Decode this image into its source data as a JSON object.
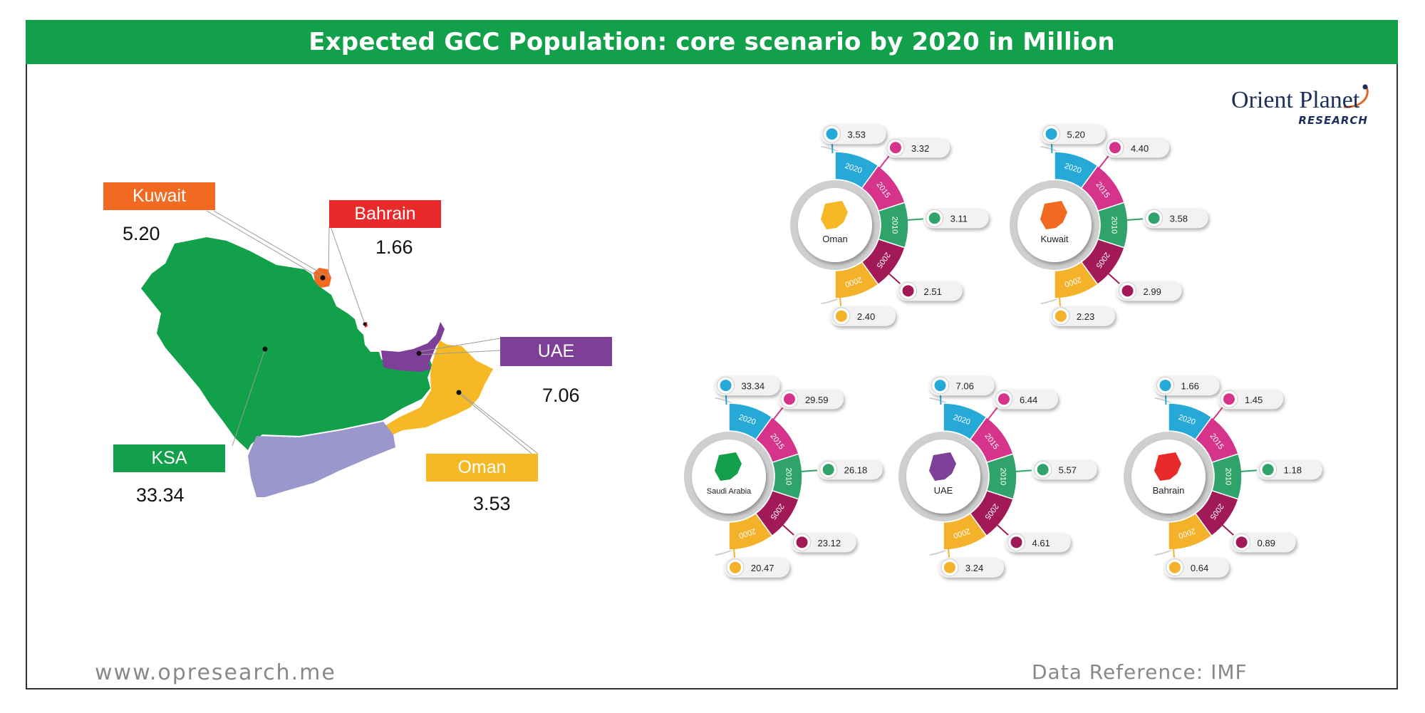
{
  "header": {
    "title": "Expected GCC Population: core scenario by 2020 in Million"
  },
  "logo": {
    "name": "Orient Planet",
    "subtitle": "RESEARCH"
  },
  "footer": {
    "url": "www.opresearch.me",
    "reference": "Data Reference: IMF"
  },
  "colors": {
    "title_bar": "#12a04a",
    "year_2020": "#27a9d8",
    "year_2015": "#d6348a",
    "year_2010": "#2fa36a",
    "year_2005": "#a11a57",
    "year_2000": "#f4b12a"
  },
  "map": {
    "labels": [
      {
        "name": "Kuwait",
        "value": "5.20",
        "color": "#f26a21"
      },
      {
        "name": "Bahrain",
        "value": "1.66",
        "color": "#e92a2a"
      },
      {
        "name": "UAE",
        "value": "7.06",
        "color": "#7d3f97"
      },
      {
        "name": "Oman",
        "value": "3.53",
        "color": "#f6b825"
      },
      {
        "name": "KSA",
        "value": "33.34",
        "color": "#12a04a"
      }
    ]
  },
  "chart_data": {
    "type": "radial_timeline",
    "title": "Expected GCC Population: core scenario by 2020 in Million",
    "years": [
      "2020",
      "2015",
      "2010",
      "2005",
      "2000"
    ],
    "series": [
      {
        "name": "Oman",
        "values": [
          3.53,
          3.32,
          3.11,
          2.51,
          2.4
        ]
      },
      {
        "name": "Kuwait",
        "values": [
          5.2,
          4.4,
          3.58,
          2.99,
          2.23
        ]
      },
      {
        "name": "Saudi Arabia",
        "values": [
          33.34,
          29.59,
          26.18,
          23.12,
          20.47
        ]
      },
      {
        "name": "UAE",
        "values": [
          7.06,
          6.44,
          5.57,
          4.61,
          3.24
        ]
      },
      {
        "name": "Bahrain",
        "values": [
          1.66,
          1.45,
          1.18,
          0.89,
          0.64
        ]
      }
    ],
    "value_labels": [
      [
        "3.53",
        "3.32",
        "3.11",
        "2.51",
        "2.40"
      ],
      [
        "5.20",
        "4.40",
        "3.58",
        "2.99",
        "2.23"
      ],
      [
        "33.34",
        "29.59",
        "26.18",
        "23.12",
        "20.47"
      ],
      [
        "7.06",
        "6.44",
        "5.57",
        "4.61",
        "3.24"
      ],
      [
        "1.66",
        "1.45",
        "1.18",
        "0.89",
        "0.64"
      ]
    ],
    "source": "IMF"
  }
}
